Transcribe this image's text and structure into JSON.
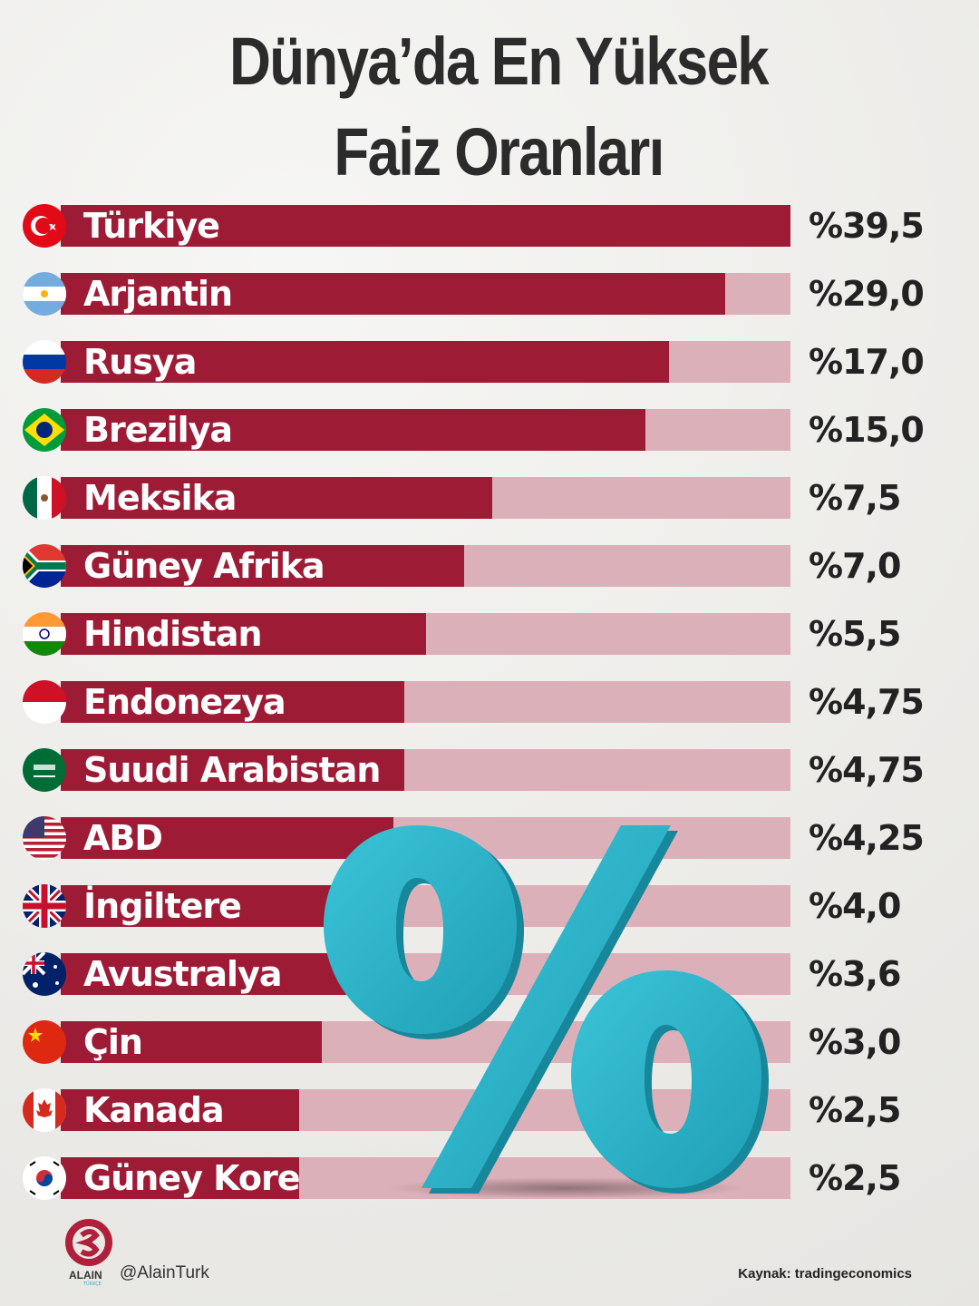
{
  "chart_data": {
    "type": "bar",
    "title": "Dünya’da En Yüksek Faiz Oranları",
    "title_lines": [
      "Dünya’da En Yüksek",
      "Faiz Oranları"
    ],
    "colors": {
      "fill": "#9e1b36",
      "track": "#dcb0b8",
      "percent_symbol": "#2bb3c9"
    },
    "rows": [
      {
        "country": "Türkiye",
        "flag": "tr",
        "value": 39.5,
        "label": "%39,5",
        "bar_fill": 1.0
      },
      {
        "country": "Arjantin",
        "flag": "ar",
        "value": 29.0,
        "label": "%29,0",
        "bar_fill": 0.911
      },
      {
        "country": "Rusya",
        "flag": "ru",
        "value": 17.0,
        "label": "%17,0",
        "bar_fill": 0.834
      },
      {
        "country": "Brezilya",
        "flag": "br",
        "value": 15.0,
        "label": "%15,0",
        "bar_fill": 0.801
      },
      {
        "country": "Meksika",
        "flag": "mx",
        "value": 7.5,
        "label": "%7,5",
        "bar_fill": 0.591
      },
      {
        "country": "Güney Afrika",
        "flag": "za",
        "value": 7.0,
        "label": "%7,0",
        "bar_fill": 0.553
      },
      {
        "country": "Hindistan",
        "flag": "in",
        "value": 5.5,
        "label": "%5,5",
        "bar_fill": 0.501
      },
      {
        "country": "Endonezya",
        "flag": "id",
        "value": 4.75,
        "label": "%4,75",
        "bar_fill": 0.471
      },
      {
        "country": "Suudi Arabistan",
        "flag": "sa",
        "value": 4.75,
        "label": "%4,75",
        "bar_fill": 0.471
      },
      {
        "country": "ABD",
        "flag": "us",
        "value": 4.25,
        "label": "%4,25",
        "bar_fill": 0.456
      },
      {
        "country": "İngiltere",
        "flag": "gb",
        "value": 4.0,
        "label": "%4,0",
        "bar_fill": 0.44
      },
      {
        "country": "Avustralya",
        "flag": "au",
        "value": 3.6,
        "label": "%3,6",
        "bar_fill": 0.42
      },
      {
        "country": "Çin",
        "flag": "cn",
        "value": 3.0,
        "label": "%3,0",
        "bar_fill": 0.358
      },
      {
        "country": "Kanada",
        "flag": "ca",
        "value": 2.5,
        "label": "%2,5",
        "bar_fill": 0.327
      },
      {
        "country": "Güney Kore",
        "flag": "kr",
        "value": 2.5,
        "label": "%2,5",
        "bar_fill": 0.327
      }
    ]
  },
  "footer": {
    "brand": "ALAIN",
    "brand_sub": "TÜRKÇE",
    "handle": "@AlainTurk",
    "source": "Kaynak: tradingeconomics"
  }
}
